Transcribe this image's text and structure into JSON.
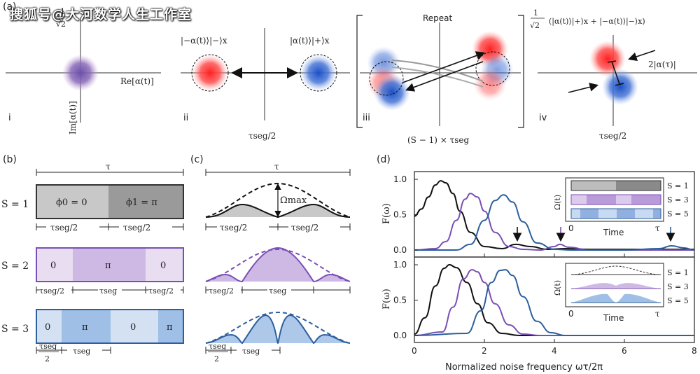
{
  "watermark": "搜狐号@大河数学人生工作室",
  "panel_a": {
    "label": "(a)",
    "sub_i": "i",
    "sub_ii": "ii",
    "sub_iii": "iii",
    "sub_iv": "iv",
    "frac_top": "1",
    "frac_bottom": "√2",
    "re_label": "Re[α(t)]",
    "im_label": "Im[α(t)]",
    "ket_minus": "|−α(t)⟩|−⟩x",
    "ket_plus": "|α(t)⟩|+⟩x",
    "tau_half": "τseg/2",
    "repeat": "Repeat",
    "repeat_time": "(S − 1) × τseg",
    "iv_state": "(|α(t)⟩|+⟩x + |−α(t)⟩|−⟩x)",
    "two_alpha": "2|α(τ)|",
    "tau_seg_half_iv": "τseg/2"
  },
  "panel_b": {
    "label": "(b)",
    "tau": "τ",
    "s1": "S = 1",
    "s2": "S = 2",
    "s3": "S = 3",
    "s1_seg0": "ϕ0 = 0",
    "s1_seg1": "ϕ1 = π",
    "s2_segs": [
      "0",
      "π",
      "0"
    ],
    "s3_segs": [
      "0",
      "π",
      "0",
      "π"
    ],
    "half": "τseg/2",
    "full": "τseg",
    "frac_num": "τseg",
    "frac_den": "2"
  },
  "panel_c": {
    "label": "(c)",
    "tau": "τ",
    "omega_max": "Ωmax",
    "half": "τseg/2",
    "full": "τseg",
    "frac_num": "τseg",
    "frac_den": "2"
  },
  "panel_d": {
    "label": "(d)",
    "ylabel": "F(ω)",
    "xlabel": "Normalized noise frequency ωτ/2π",
    "xticks": [
      "0",
      "2",
      "4",
      "6",
      "8"
    ],
    "yticks": [
      "0.0",
      "0.5",
      "1.0"
    ],
    "inset_ylabel": "Ω(t)",
    "inset_xlabel": "Time",
    "inset_start": "0",
    "inset_end": "τ",
    "inset_legend": [
      "S = 1",
      "S = 3",
      "S = 5"
    ]
  },
  "chart_data": [
    {
      "type": "line",
      "xlabel": "",
      "ylabel": "F(ω)",
      "xlim": [
        0,
        8
      ],
      "ylim": [
        0,
        1.05
      ],
      "series": [
        {
          "color": "#111111",
          "x": [
            0,
            0.2,
            0.4,
            0.6,
            0.75,
            0.9,
            1.1,
            1.3,
            1.6,
            2.0,
            2.5,
            2.9,
            3.3,
            3.8,
            4.3,
            5,
            6,
            7,
            8
          ],
          "y": [
            0.48,
            0.58,
            0.75,
            0.92,
            0.98,
            0.95,
            0.8,
            0.55,
            0.25,
            0.05,
            0.02,
            0.08,
            0.05,
            0.01,
            0.02,
            0.01,
            0.01,
            0.01,
            0.01
          ]
        },
        {
          "color": "#7a4fb5",
          "x": [
            0,
            0.6,
            0.9,
            1.2,
            1.45,
            1.6,
            1.8,
            2.0,
            2.3,
            2.7,
            3.1,
            3.6,
            4.0,
            4.15,
            4.4,
            5,
            6,
            7,
            8
          ],
          "y": [
            0.0,
            0.02,
            0.12,
            0.42,
            0.72,
            0.8,
            0.75,
            0.55,
            0.25,
            0.05,
            0.01,
            0.0,
            0.05,
            0.08,
            0.04,
            0.0,
            0.0,
            0.0,
            0.0
          ]
        },
        {
          "color": "#2c5f9e",
          "x": [
            0,
            1.2,
            1.6,
            2.0,
            2.3,
            2.55,
            2.8,
            3.1,
            3.5,
            4.0,
            4.5,
            5,
            6,
            7,
            7.35,
            7.7,
            8
          ],
          "y": [
            0.0,
            0.0,
            0.08,
            0.42,
            0.7,
            0.78,
            0.68,
            0.4,
            0.1,
            0.01,
            0.0,
            0.0,
            0.0,
            0.02,
            0.06,
            0.03,
            0.0
          ]
        }
      ]
    },
    {
      "type": "line",
      "xlabel": "Normalized noise frequency ωτ/2π",
      "ylabel": "F(ω)",
      "xlim": [
        0,
        8
      ],
      "ylim": [
        0,
        1.05
      ],
      "series": [
        {
          "color": "#111111",
          "x": [
            0,
            0.3,
            0.6,
            0.85,
            1.0,
            1.2,
            1.5,
            1.8,
            2.1,
            2.5,
            3,
            4,
            8
          ],
          "y": [
            0.02,
            0.25,
            0.7,
            0.95,
            1.0,
            0.96,
            0.75,
            0.45,
            0.18,
            0.03,
            0.0,
            0.0,
            0.0
          ]
        },
        {
          "color": "#7a4fb5",
          "x": [
            0,
            0.8,
            1.1,
            1.4,
            1.65,
            1.8,
            2.0,
            2.3,
            2.7,
            3.1,
            3.6,
            4,
            8
          ],
          "y": [
            0.0,
            0.05,
            0.4,
            0.8,
            0.93,
            0.9,
            0.75,
            0.45,
            0.15,
            0.02,
            0.0,
            0.0,
            0.0
          ]
        },
        {
          "color": "#2c5f9e",
          "x": [
            0,
            1.5,
            1.9,
            2.2,
            2.45,
            2.6,
            2.8,
            3.1,
            3.5,
            3.9,
            4.3,
            5,
            8
          ],
          "y": [
            0.0,
            0.03,
            0.35,
            0.75,
            0.92,
            0.93,
            0.85,
            0.55,
            0.2,
            0.04,
            0.0,
            0.0,
            0.0
          ]
        }
      ]
    }
  ]
}
